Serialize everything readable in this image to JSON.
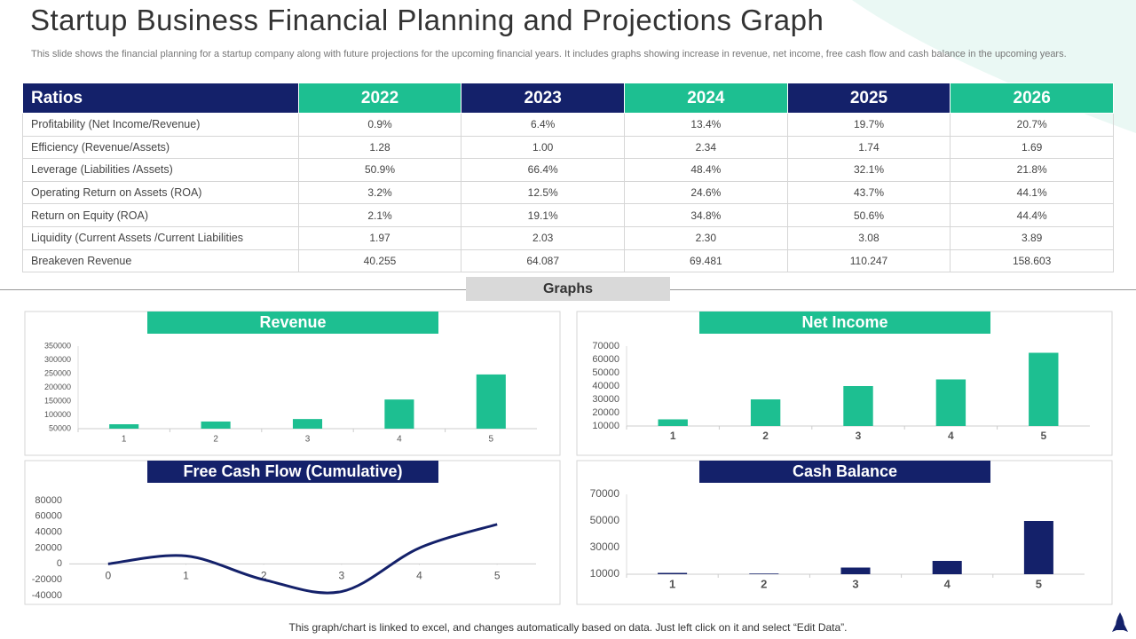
{
  "title": "Startup Business Financial Planning and Projections Graph",
  "subtitle": "This slide shows the financial planning for a startup company along with future projections for the upcoming financial years. It includes graphs showing increase in revenue, net income, free cash flow and cash balance in the upcoming years.",
  "table": {
    "header": [
      "Ratios",
      "2022",
      "2023",
      "2024",
      "2025",
      "2026"
    ],
    "rows": [
      [
        "Profitability (Net Income/Revenue)",
        "0.9%",
        "6.4%",
        "13.4%",
        "19.7%",
        "20.7%"
      ],
      [
        "Efficiency (Revenue/Assets)",
        "1.28",
        "1.00",
        "2.34",
        "1.74",
        "1.69"
      ],
      [
        "Leverage  (Liabilities /Assets)",
        "50.9%",
        "66.4%",
        "48.4%",
        "32.1%",
        "21.8%"
      ],
      [
        "Operating Return on Assets (ROA)",
        "3.2%",
        "12.5%",
        "24.6%",
        "43.7%",
        "44.1%"
      ],
      [
        "Return on Equity (ROA)",
        "2.1%",
        "19.1%",
        "34.8%",
        "50.6%",
        "44.4%"
      ],
      [
        "Liquidity (Current  Assets /Current Liabilities",
        "1.97",
        "2.03",
        "2.30",
        "3.08",
        "3.89"
      ],
      [
        "Breakeven Revenue",
        "40.255",
        "64.087",
        "69.481",
        "110.247",
        "158.603"
      ]
    ]
  },
  "graphs_label": "Graphs",
  "footer": "This graph/chart is linked to excel,  and changes automatically based on data. Just left click on it and select “Edit Data”.",
  "chart_data": [
    {
      "type": "bar",
      "title": "Revenue",
      "color": "#1dbf91",
      "categories": [
        "1",
        "2",
        "3",
        "4",
        "5"
      ],
      "values": [
        66000,
        76000,
        85000,
        156000,
        247000
      ],
      "ylim": [
        50000,
        350000
      ],
      "yticks": [
        50000,
        100000,
        150000,
        200000,
        250000,
        300000,
        350000
      ]
    },
    {
      "type": "bar",
      "title": "Net Income",
      "color": "#1dbf91",
      "categories": [
        "1",
        "2",
        "3",
        "4",
        "5"
      ],
      "values": [
        15000,
        30000,
        40000,
        45000,
        65000
      ],
      "ylim": [
        10000,
        70000
      ],
      "yticks": [
        10000,
        20000,
        30000,
        40000,
        50000,
        60000,
        70000
      ]
    },
    {
      "type": "line",
      "title": "Free Cash Flow (Cumulative)",
      "color": "#14216a",
      "x": [
        0,
        1,
        2,
        3,
        4,
        5
      ],
      "values": [
        0,
        10000,
        -20000,
        -35000,
        20000,
        50000
      ],
      "xlim": [
        -0.5,
        5.5
      ],
      "xticks": [
        0,
        1,
        2,
        3,
        4,
        5
      ],
      "ylim": [
        -40000,
        80000
      ],
      "yticks": [
        -40000,
        -20000,
        0,
        20000,
        40000,
        60000,
        80000
      ]
    },
    {
      "type": "bar",
      "title": "Cash Balance",
      "color": "#14216a",
      "categories": [
        "1",
        "2",
        "3",
        "4",
        "5"
      ],
      "values": [
        11000,
        10500,
        15000,
        20000,
        50000
      ],
      "ylim": [
        10000,
        70000
      ],
      "yticks": [
        10000,
        30000,
        50000,
        70000
      ]
    }
  ]
}
